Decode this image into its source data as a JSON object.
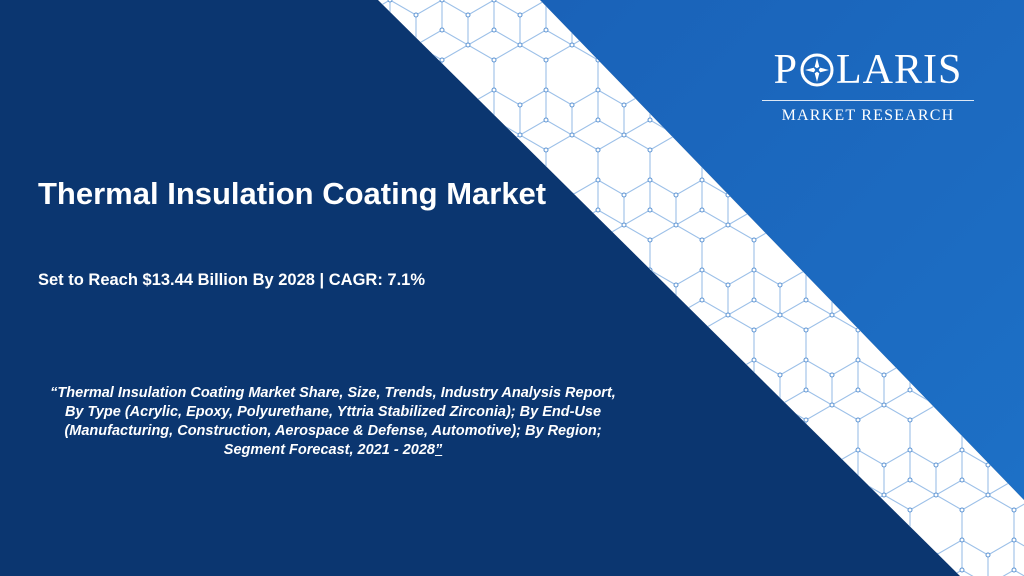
{
  "colors": {
    "dark_navy": "#0b3670",
    "bright_blue": "#1f6cc2",
    "stripe_white": "#ffffff",
    "pattern_line": "#8fb8e6"
  },
  "logo": {
    "word_left": "P",
    "word_right": "LARIS",
    "star_icon": "compass-star-icon",
    "subtitle": "MARKET RESEARCH"
  },
  "title": "Thermal Insulation Coating Market",
  "subtitle": "Set to Reach $13.44 Billion By 2028 | CAGR: 7.1%",
  "report": {
    "description": "“Thermal Insulation Coating Market Share, Size, Trends, Industry Analysis Report, By Type (Acrylic, Epoxy, Polyurethane, Yttria Stabilized Zirconia); By End-Use (Manufacturing, Construction, Aerospace & Defense, Automotive); By Region; Segment Forecast, 2021 - 2028",
    "closing": "”"
  }
}
